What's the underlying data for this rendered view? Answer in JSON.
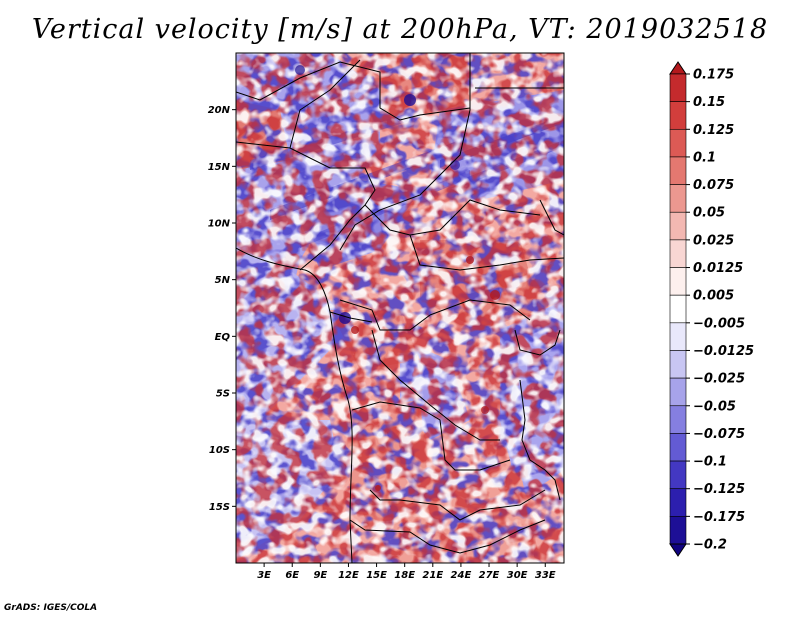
{
  "title": "Vertical velocity [m/s] at 200hPa, VT: 2019032518",
  "credit": "GrADS: IGES/COLA",
  "map": {
    "lon_range": [
      0,
      35
    ],
    "lat_range": [
      -20,
      25
    ],
    "lat_ticks": [
      {
        "value": 20,
        "label": "20N"
      },
      {
        "value": 15,
        "label": "15N"
      },
      {
        "value": 10,
        "label": "10N"
      },
      {
        "value": 5,
        "label": "5N"
      },
      {
        "value": 0,
        "label": "EQ"
      },
      {
        "value": -5,
        "label": "5S"
      },
      {
        "value": -10,
        "label": "10S"
      },
      {
        "value": -15,
        "label": "15S"
      }
    ],
    "lon_ticks": [
      {
        "value": 3,
        "label": "3E"
      },
      {
        "value": 6,
        "label": "6E"
      },
      {
        "value": 9,
        "label": "9E"
      },
      {
        "value": 12,
        "label": "12E"
      },
      {
        "value": 15,
        "label": "15E"
      },
      {
        "value": 18,
        "label": "18E"
      },
      {
        "value": 21,
        "label": "21E"
      },
      {
        "value": 24,
        "label": "24E"
      },
      {
        "value": 27,
        "label": "27E"
      },
      {
        "value": 30,
        "label": "30E"
      },
      {
        "value": 33,
        "label": "33E"
      }
    ]
  },
  "colorbar": {
    "labels": [
      "0.175",
      "0.15",
      "0.125",
      "0.1",
      "0.075",
      "0.05",
      "0.025",
      "0.0125",
      "0.005",
      "−0.005",
      "−0.0125",
      "−0.025",
      "−0.05",
      "−0.075",
      "−0.1",
      "−0.125",
      "−0.175",
      "−0.2"
    ],
    "colors": [
      "#b3191d",
      "#c42a2d",
      "#d23e3c",
      "#dc5a55",
      "#e47870",
      "#ec9890",
      "#f3b8b2",
      "#f8d6d3",
      "#fdf0ee",
      "#ffffff",
      "#e9e8fb",
      "#c8c6f3",
      "#a7a3ea",
      "#857fe0",
      "#635bd4",
      "#4338c2",
      "#2c1fae",
      "#1d0f96",
      "#100380"
    ]
  }
}
